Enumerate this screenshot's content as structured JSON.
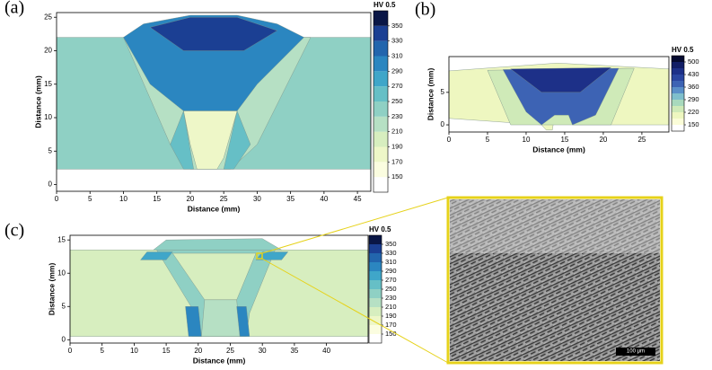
{
  "chart_data": [
    {
      "type": "contour",
      "label": "(a)",
      "colorbar_title": "HV 0.5",
      "x_label": "Distance (mm)",
      "y_label": "Distance (mm)",
      "xlim": [
        0,
        47
      ],
      "ylim": [
        -1,
        25.7
      ],
      "xticks": [
        0,
        5,
        10,
        15,
        20,
        25,
        30,
        35,
        40,
        45
      ],
      "yticks": [
        0,
        5,
        10,
        15,
        20,
        25
      ],
      "levels": [
        150,
        170,
        190,
        210,
        230,
        250,
        270,
        290,
        310,
        330,
        350
      ],
      "colors": [
        "#ffffff",
        "#fbfde0",
        "#eef7c8",
        "#d7eebf",
        "#b6e0c4",
        "#8fd0c4",
        "#66bfc6",
        "#3fa6c9",
        "#2b86c0",
        "#2265ad",
        "#1b3f93",
        "#0a1646"
      ],
      "cbar_ticks": [
        150,
        170,
        190,
        210,
        230,
        250,
        270,
        290,
        310,
        330,
        350
      ],
      "regions": [
        {
          "value": 230,
          "x": [
            0,
            47,
            47,
            0
          ],
          "y": [
            2.3,
            2.3,
            22,
            22
          ]
        },
        {
          "value": 210,
          "x": [
            10,
            38,
            30,
            26,
            20,
            17
          ],
          "y": [
            22,
            22,
            6,
            2.3,
            2.3,
            6
          ]
        },
        {
          "value": 290,
          "x": [
            10,
            13,
            20,
            27,
            33,
            37,
            30,
            27,
            19,
            14
          ],
          "y": [
            22,
            24,
            25.3,
            25.3,
            24,
            22,
            15,
            11,
            11,
            15
          ]
        },
        {
          "value": 330,
          "x": [
            14,
            20,
            27,
            33,
            28,
            19
          ],
          "y": [
            23.5,
            25,
            25,
            23,
            20,
            20
          ]
        },
        {
          "value": 250,
          "x": [
            17,
            19,
            20.5,
            19
          ],
          "y": [
            6,
            11,
            2.3,
            2.3
          ]
        },
        {
          "value": 250,
          "x": [
            27,
            29,
            26.5,
            25
          ],
          "y": [
            11,
            6,
            2.3,
            2.3
          ]
        },
        {
          "value": 170,
          "x": [
            19,
            27,
            25,
            24,
            21,
            20
          ],
          "y": [
            11,
            11,
            4,
            2.3,
            2.3,
            6
          ]
        }
      ]
    },
    {
      "type": "contour",
      "label": "(b)",
      "colorbar_title": "HV 0.5",
      "x_label": "Distance (mm)",
      "y_label": "Distance (mm)",
      "xlim": [
        0,
        28.5
      ],
      "ylim": [
        -1.1,
        10.5
      ],
      "xticks": [
        0,
        5,
        10,
        15,
        20,
        25
      ],
      "yticks": [
        0,
        5
      ],
      "levels": [
        150,
        185,
        220,
        255,
        290,
        325,
        360,
        395,
        430,
        465,
        500
      ],
      "colors": [
        "#ffffff",
        "#fbfdd8",
        "#eef7c0",
        "#cfeab8",
        "#a8d9bd",
        "#7fbfcc",
        "#5a8fc8",
        "#3d63b4",
        "#2a46a0",
        "#1d3088",
        "#121e66",
        "#060b30"
      ],
      "cbar_ticks": [
        150,
        220,
        290,
        360,
        430,
        500
      ],
      "regions": [
        {
          "value": 185,
          "x": [
            0,
            12,
            12.6,
            13.4,
            13.7,
            15.5,
            16,
            28.5,
            28.5,
            14,
            0
          ],
          "y": [
            1,
            0,
            -0.8,
            -0.8,
            1.5,
            1.5,
            0,
            0,
            8.6,
            9.5,
            8.3
          ]
        },
        {
          "value": 220,
          "x": [
            5,
            24,
            21,
            16,
            12,
            8
          ],
          "y": [
            8.4,
            8.7,
            0,
            0,
            0,
            0
          ]
        },
        {
          "value": 360,
          "x": [
            7,
            22,
            19,
            16,
            15.5,
            13.7,
            12,
            10
          ],
          "y": [
            8.5,
            8.7,
            1.5,
            0,
            1.5,
            1.5,
            0,
            2
          ]
        },
        {
          "value": 430,
          "x": [
            8,
            21,
            17,
            12
          ],
          "y": [
            8.6,
            8.8,
            5,
            5
          ]
        }
      ]
    },
    {
      "type": "contour",
      "label": "(c)",
      "colorbar_title": "HV 0.5",
      "x_label": "Distance (mm)",
      "y_label": "Distance (mm)",
      "xlim": [
        0,
        46.5
      ],
      "ylim": [
        -0.5,
        15.7
      ],
      "xticks": [
        0,
        5,
        10,
        15,
        20,
        25,
        30,
        35,
        40
      ],
      "yticks": [
        0,
        5,
        10,
        15
      ],
      "levels": [
        150,
        170,
        190,
        210,
        230,
        250,
        270,
        290,
        310,
        330,
        350
      ],
      "colors": [
        "#ffffff",
        "#fbfde0",
        "#eef7c8",
        "#d7eebf",
        "#b6e0c4",
        "#8fd0c4",
        "#66bfc6",
        "#3fa6c9",
        "#2b86c0",
        "#2265ad",
        "#1b3f93",
        "#0a1646"
      ],
      "cbar_ticks": [
        150,
        170,
        190,
        210,
        230,
        250,
        270,
        290,
        310,
        330,
        350
      ],
      "regions": [
        {
          "value": 190,
          "x": [
            0,
            46.5,
            46.5,
            0
          ],
          "y": [
            0.5,
            0.5,
            13.5,
            13.5
          ]
        },
        {
          "value": 230,
          "x": [
            13,
            15,
            30,
            33
          ],
          "y": [
            13.5,
            15,
            15.2,
            13.5
          ]
        },
        {
          "value": 230,
          "x": [
            13.5,
            32,
            28,
            27.5,
            19,
            19.5
          ],
          "y": [
            13.5,
            13.5,
            4,
            0.5,
            0.5,
            4
          ]
        },
        {
          "value": 190,
          "x": [
            16,
            29,
            26,
            21
          ],
          "y": [
            13,
            13,
            6,
            6
          ]
        },
        {
          "value": 210,
          "x": [
            21,
            26,
            26.5,
            20.5
          ],
          "y": [
            6,
            6,
            0.5,
            0.5
          ]
        },
        {
          "value": 290,
          "x": [
            18,
            20,
            20.5,
            18.5
          ],
          "y": [
            5,
            5,
            0.5,
            0.5
          ]
        },
        {
          "value": 290,
          "x": [
            26,
            27.5,
            28,
            26.5
          ],
          "y": [
            5,
            5,
            0.5,
            0.5
          ]
        },
        {
          "value": 270,
          "x": [
            12,
            16,
            15,
            11
          ],
          "y": [
            13.2,
            13.2,
            12,
            12
          ]
        },
        {
          "value": 270,
          "x": [
            30,
            34,
            33,
            29
          ],
          "y": [
            13.2,
            13.2,
            12,
            12
          ]
        }
      ]
    }
  ],
  "micrograph": {
    "scale_bar": "100 μm"
  }
}
